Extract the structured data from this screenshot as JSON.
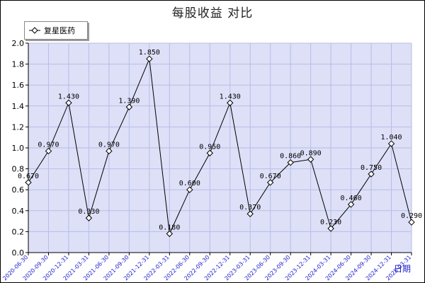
{
  "chart_data": {
    "type": "line",
    "title": "每股收益  对比",
    "x_unit_label": "日期",
    "legend_position": "top-left",
    "grid": true,
    "ylim": [
      0,
      2.0
    ],
    "y_ticks": [
      "0.0",
      "0.2",
      "0.4",
      "0.6",
      "0.8",
      "1.0",
      "1.2",
      "1.4",
      "1.6",
      "1.8",
      "2.0"
    ],
    "categories": [
      "2020-06-30",
      "2020-09-30",
      "2020-12-31",
      "2021-03-31",
      "2021-06-30",
      "2021-09-30",
      "2021-12-31",
      "2022-03-31",
      "2022-06-30",
      "2022-09-30",
      "2022-12-31",
      "2023-03-31",
      "2023-06-30",
      "2023-09-30",
      "2023-12-31",
      "2024-03-31",
      "2024-06-30",
      "2024-09-30",
      "2024-12-31",
      "2025-03-31"
    ],
    "series": [
      {
        "name": "复星医药",
        "values": [
          0.67,
          0.97,
          1.43,
          0.33,
          0.97,
          1.39,
          1.85,
          0.18,
          0.6,
          0.95,
          1.43,
          0.37,
          0.67,
          0.86,
          0.89,
          0.23,
          0.46,
          0.75,
          1.04,
          0.29
        ],
        "labels": [
          "0.670",
          "0.970",
          "1.430",
          "0.330",
          "0.970",
          "1.390",
          "1.850",
          "0.180",
          "0.600",
          "0.950",
          "1.430",
          "0.370",
          "0.670",
          "0.860",
          "0.890",
          "0.230",
          "0.460",
          "0.750",
          "1.040",
          "0.290"
        ]
      }
    ]
  },
  "colors": {
    "plot_background": "#dde0f7",
    "grid": "#b8bde6",
    "line": "#000000",
    "x_labels": "#1a1acd"
  }
}
